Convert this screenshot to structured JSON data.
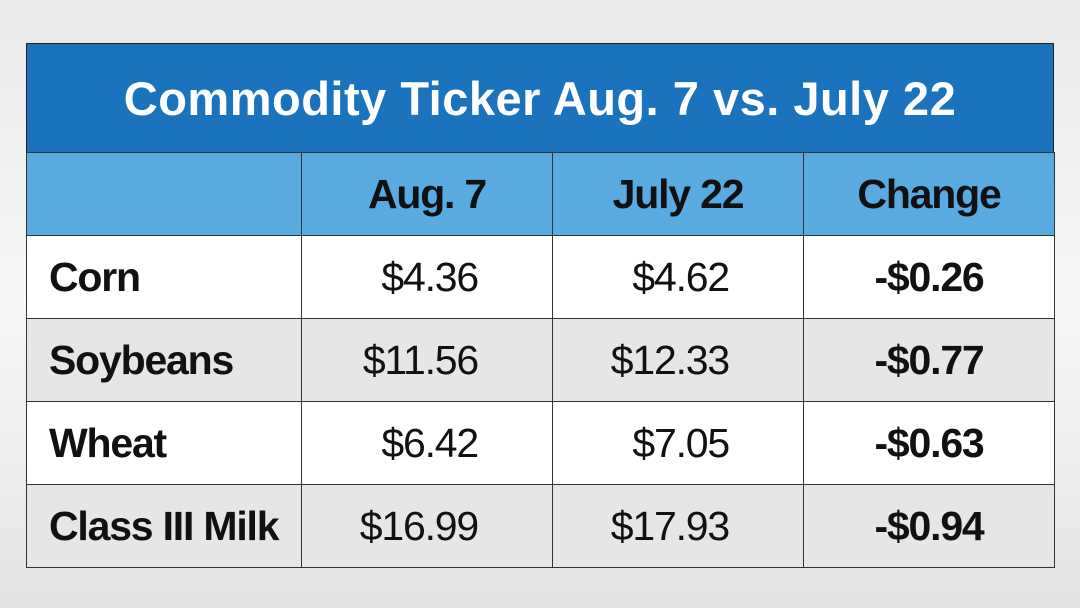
{
  "title": "Commodity Ticker Aug. 7 vs. July 22",
  "table": {
    "columns": [
      "Aug. 7",
      "July 22",
      "Change"
    ],
    "rows": [
      [
        "Corn",
        "$4.36",
        "$4.62",
        "-$0.26"
      ],
      [
        "Soybeans",
        "$11.56",
        "$12.33",
        "-$0.77"
      ],
      [
        "Wheat",
        "$6.42",
        "$7.05",
        "-$0.63"
      ],
      [
        "Class III Milk",
        "$16.99",
        "$17.93",
        "-$0.94"
      ]
    ]
  }
}
